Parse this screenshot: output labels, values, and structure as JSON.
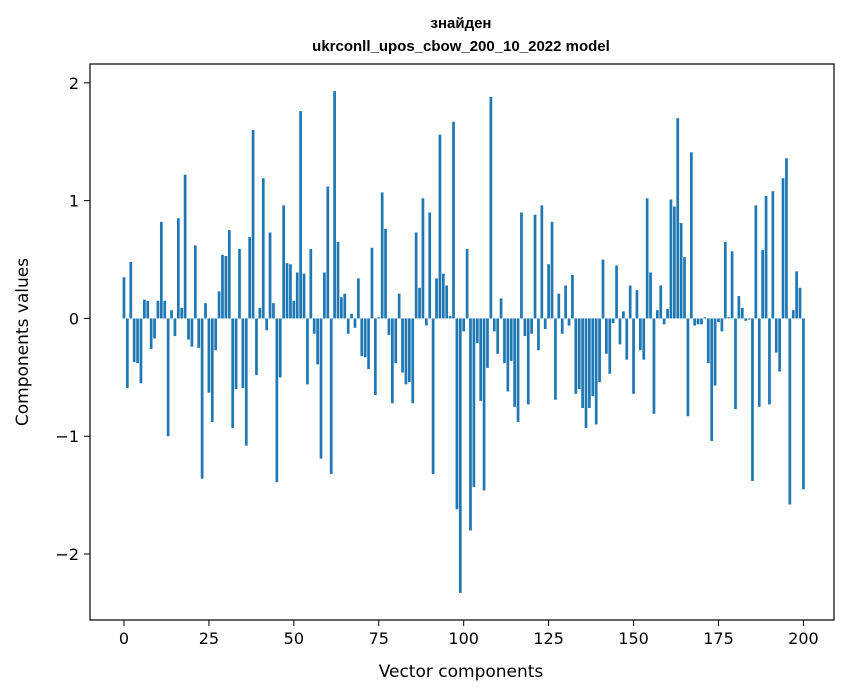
{
  "chart_data": {
    "type": "bar",
    "title": "знайден",
    "subtitle": "ukrconll_upos_cbow_200_10_2022 model",
    "xlabel": "Vector components",
    "ylabel": "Components values",
    "xlim": [
      -10,
      209
    ],
    "ylim": [
      -2.56,
      2.16
    ],
    "xticks": [
      0,
      25,
      50,
      75,
      100,
      125,
      150,
      175,
      200
    ],
    "xtick_labels": [
      "0",
      "25",
      "50",
      "75",
      "100",
      "125",
      "150",
      "175",
      "200"
    ],
    "yticks": [
      -2,
      -1,
      0,
      1,
      2
    ],
    "ytick_labels": [
      "−2",
      "−1",
      "0",
      "1",
      "2"
    ],
    "grid": false,
    "bar_color": "#1f77b4",
    "values": [
      0.35,
      -0.59,
      0.48,
      -0.37,
      -0.38,
      -0.55,
      0.16,
      0.15,
      -0.26,
      -0.17,
      0.15,
      0.82,
      0.15,
      -1.0,
      0.07,
      -0.15,
      0.85,
      0.09,
      1.22,
      -0.18,
      -0.24,
      0.62,
      -0.25,
      -1.36,
      0.13,
      -0.63,
      -0.88,
      -0.27,
      0.23,
      0.54,
      0.53,
      0.75,
      -0.93,
      -0.6,
      0.59,
      -0.59,
      -1.08,
      0.69,
      1.6,
      -0.48,
      0.09,
      1.19,
      -0.1,
      0.73,
      0.13,
      -1.39,
      -0.5,
      0.96,
      0.47,
      0.46,
      0.15,
      0.39,
      1.76,
      0.38,
      -0.56,
      0.59,
      -0.13,
      -0.39,
      -1.19,
      0.39,
      1.12,
      -1.32,
      1.93,
      0.65,
      0.18,
      0.21,
      -0.13,
      0.04,
      -0.08,
      0.34,
      -0.32,
      -0.33,
      -0.43,
      0.6,
      -0.65,
      0.01,
      1.07,
      0.76,
      -0.14,
      -0.72,
      -0.38,
      0.21,
      -0.46,
      -0.56,
      -0.54,
      -0.72,
      0.73,
      0.26,
      1.02,
      -0.06,
      0.9,
      -1.32,
      0.34,
      1.56,
      0.38,
      0.28,
      0.02,
      1.67,
      -1.62,
      -2.33,
      -0.11,
      0.59,
      -1.8,
      -1.43,
      -0.21,
      -0.7,
      -1.46,
      -0.42,
      1.88,
      -0.11,
      -0.3,
      0.17,
      -0.38,
      -0.62,
      -0.36,
      -0.75,
      -0.88,
      0.9,
      -0.15,
      -0.73,
      -0.13,
      0.88,
      -0.27,
      0.96,
      -0.09,
      0.46,
      0.82,
      -0.69,
      0.21,
      -0.13,
      0.28,
      -0.06,
      0.37,
      -0.64,
      -0.6,
      -0.76,
      -0.93,
      -0.76,
      -0.66,
      -0.9,
      -0.54,
      0.5,
      -0.3,
      -0.47,
      -0.04,
      0.45,
      -0.22,
      0.06,
      -0.35,
      0.28,
      -0.64,
      0.24,
      -0.27,
      -0.35,
      1.02,
      0.39,
      -0.81,
      0.07,
      0.28,
      -0.05,
      0.08,
      1.01,
      0.95,
      1.7,
      0.81,
      0.52,
      -0.83,
      1.41,
      -0.06,
      -0.05,
      -0.05,
      0.01,
      -0.38,
      -1.04,
      -0.57,
      -0.03,
      -0.11,
      0.65,
      0.01,
      0.57,
      -0.77,
      0.19,
      0.09,
      -0.02,
      -0.01,
      -1.38,
      0.96,
      -0.75,
      0.58,
      1.04,
      -0.73,
      1.08,
      -0.29,
      -0.45,
      1.19,
      1.36,
      -1.58,
      0.07,
      0.4,
      0.26,
      -1.45
    ]
  }
}
